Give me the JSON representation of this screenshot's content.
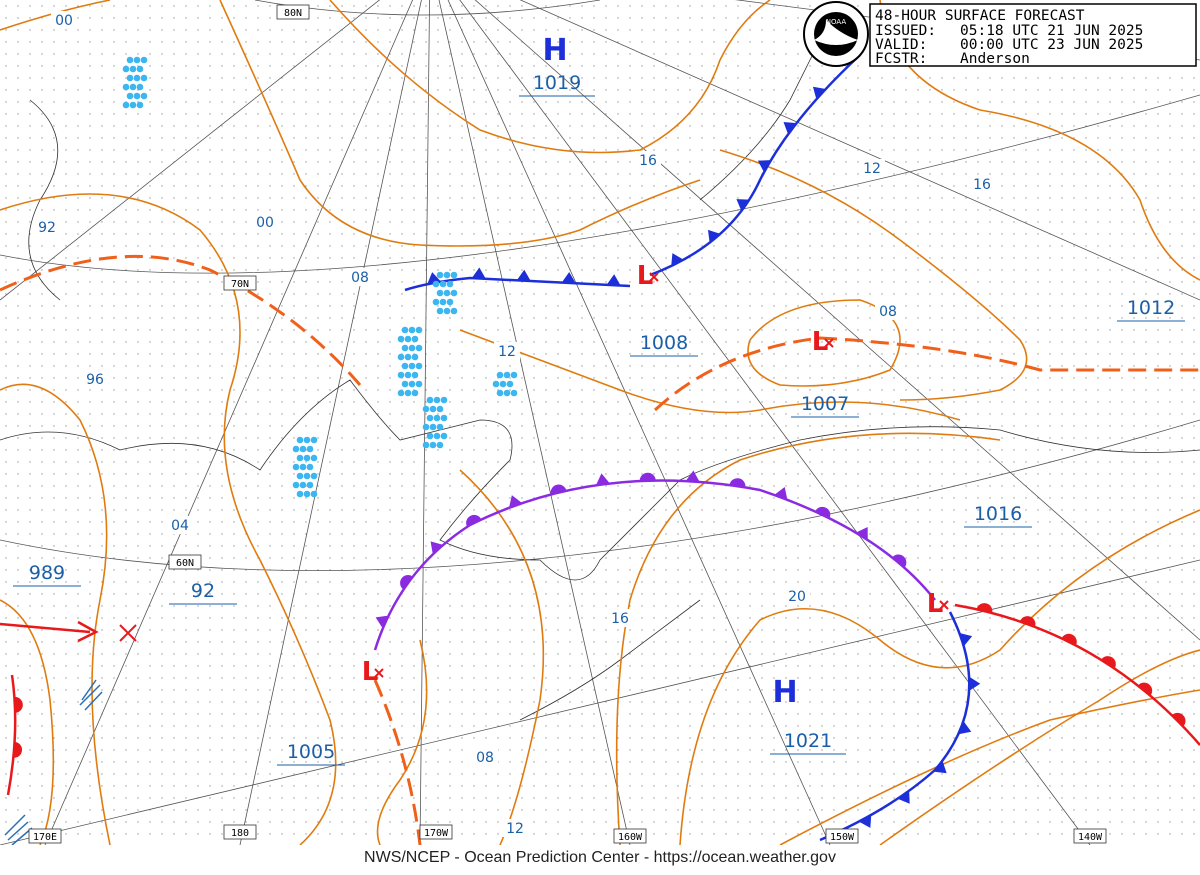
{
  "header": {
    "title": "48-HOUR SURFACE FORECAST",
    "issued_label": "ISSUED:",
    "issued": "05:18 UTC 21 JUN 2025",
    "valid_label": "VALID:",
    "valid": "00:00 UTC 23 JUN 2025",
    "fcstr_label": "FCSTR:",
    "fcstr": "Anderson"
  },
  "logo": "NOAA",
  "highs": [
    {
      "symbol": "H",
      "pressure": "1019"
    },
    {
      "symbol": "H",
      "pressure": "1021"
    }
  ],
  "lows": [
    "L",
    "L",
    "L",
    "L"
  ],
  "pressures": [
    "1008",
    "1007",
    "1012",
    "1016",
    "1005",
    "989",
    "92"
  ],
  "isobar_labels": [
    "00",
    "92",
    "00",
    "08",
    "16",
    "12",
    "16",
    "96",
    "08",
    "12",
    "04",
    "20",
    "16",
    "08",
    "12"
  ],
  "grid_labels": [
    "80N",
    "70N",
    "60N",
    "170E",
    "180",
    "170W",
    "160W",
    "150W",
    "140W"
  ],
  "footer": "NWS/NCEP - Ocean Prediction Center - https://ocean.weather.gov"
}
